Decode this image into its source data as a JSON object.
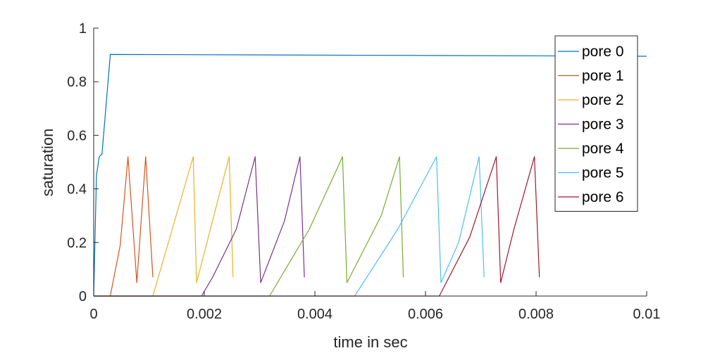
{
  "chart_data": {
    "type": "line",
    "xlabel": "time in sec",
    "ylabel": "saturation",
    "xlim": [
      0,
      0.01
    ],
    "ylim": [
      0,
      1
    ],
    "xticks": [
      0,
      0.002,
      0.004,
      0.006,
      0.008,
      0.01
    ],
    "xtick_labels": [
      "0",
      "0.002",
      "0.004",
      "0.006",
      "0.008",
      "0.01"
    ],
    "yticks": [
      0,
      0.2,
      0.4,
      0.6,
      0.8,
      1
    ],
    "ytick_labels": [
      "0",
      "0.2",
      "0.4",
      "0.6",
      "0.8",
      "1"
    ],
    "grid": false,
    "legend_position": "top-right",
    "series": [
      {
        "name": "pore 0",
        "color": "#0072BD",
        "x": [
          0,
          5e-05,
          0.0001,
          0.00015,
          0.0003,
          0.0003,
          0.01
        ],
        "y": [
          0,
          0.45,
          0.52,
          0.53,
          0.9,
          0.902,
          0.895
        ]
      },
      {
        "name": "pore 1",
        "color": "#D95319",
        "x": [
          0,
          0.0003,
          0.00048,
          0.00062,
          0.00078,
          0.00094,
          0.00107
        ],
        "y": [
          0,
          0,
          0.19,
          0.52,
          0.05,
          0.52,
          0.07
        ]
      },
      {
        "name": "pore 2",
        "color": "#EDB120",
        "x": [
          0,
          0.00107,
          0.0018,
          0.00186,
          0.00245,
          0.00252
        ],
        "y": [
          0,
          0,
          0.52,
          0.05,
          0.52,
          0.07
        ]
      },
      {
        "name": "pore 3",
        "color": "#7E2F8E",
        "x": [
          0,
          0.00195,
          0.00215,
          0.00258,
          0.00292,
          0.00302,
          0.00345,
          0.00373,
          0.00381
        ],
        "y": [
          0,
          0,
          0.07,
          0.25,
          0.52,
          0.05,
          0.28,
          0.52,
          0.07
        ]
      },
      {
        "name": "pore 4",
        "color": "#77AC30",
        "x": [
          0,
          0.00318,
          0.0039,
          0.0045,
          0.00458,
          0.0052,
          0.00553,
          0.0056
        ],
        "y": [
          0,
          0,
          0.25,
          0.52,
          0.05,
          0.3,
          0.52,
          0.07
        ]
      },
      {
        "name": "pore 5",
        "color": "#4DBEEE",
        "x": [
          0,
          0.00472,
          0.0055,
          0.0062,
          0.00628,
          0.0066,
          0.00697,
          0.00706
        ],
        "y": [
          0,
          0,
          0.25,
          0.52,
          0.05,
          0.2,
          0.52,
          0.07
        ]
      },
      {
        "name": "pore 6",
        "color": "#A2142F",
        "x": [
          0,
          0.00625,
          0.0068,
          0.00728,
          0.00736,
          0.0076,
          0.00797,
          0.00806
        ],
        "y": [
          0,
          0,
          0.22,
          0.52,
          0.05,
          0.25,
          0.52,
          0.07
        ]
      }
    ]
  }
}
